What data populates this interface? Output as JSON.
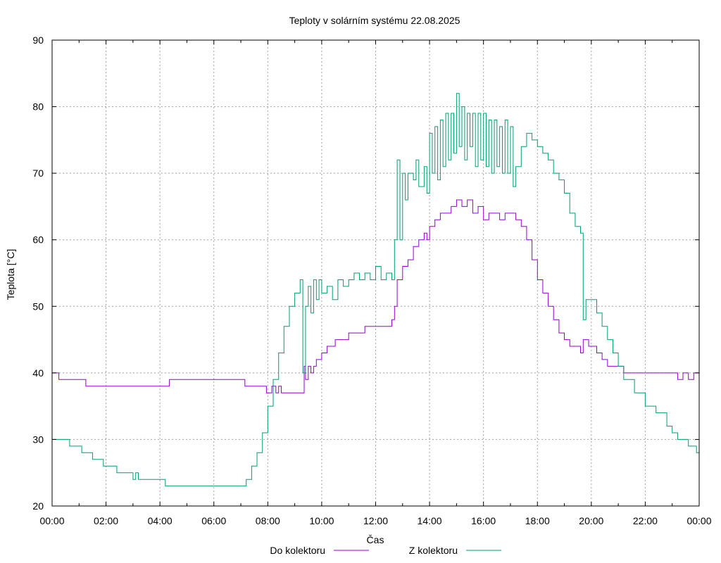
{
  "chart_data": {
    "type": "line",
    "title": "Teploty v solárním systému 22.08.2025",
    "xlabel": "Čas",
    "ylabel": "Teplota [°C]",
    "xlim": [
      0,
      24
    ],
    "ylim": [
      20,
      90
    ],
    "x_ticks": [
      "00:00",
      "02:00",
      "04:00",
      "06:00",
      "08:00",
      "10:00",
      "12:00",
      "14:00",
      "16:00",
      "18:00",
      "20:00",
      "22:00",
      "00:00"
    ],
    "y_ticks": [
      "20",
      "30",
      "40",
      "50",
      "60",
      "70",
      "80",
      "90"
    ],
    "grid": true,
    "legend_position": "bottom",
    "x_unit": "hours",
    "series": [
      {
        "name": "Do kolektoru",
        "color": "#9400d3",
        "points": [
          [
            0,
            40
          ],
          [
            0.2,
            40
          ],
          [
            0.25,
            39
          ],
          [
            1.2,
            39
          ],
          [
            1.25,
            38
          ],
          [
            4.3,
            38
          ],
          [
            4.35,
            39
          ],
          [
            7.1,
            39
          ],
          [
            7.15,
            38
          ],
          [
            7.9,
            38
          ],
          [
            7.95,
            37
          ],
          [
            8.1,
            37
          ],
          [
            8.15,
            38
          ],
          [
            8.3,
            37
          ],
          [
            8.4,
            38
          ],
          [
            8.5,
            37
          ],
          [
            9.3,
            37
          ],
          [
            9.35,
            41
          ],
          [
            9.4,
            39
          ],
          [
            9.5,
            41
          ],
          [
            9.6,
            40
          ],
          [
            9.7,
            41
          ],
          [
            9.8,
            42
          ],
          [
            10.0,
            43
          ],
          [
            10.2,
            44
          ],
          [
            10.5,
            45
          ],
          [
            10.8,
            45
          ],
          [
            11.0,
            46
          ],
          [
            11.5,
            46
          ],
          [
            11.6,
            47
          ],
          [
            12.0,
            47
          ],
          [
            12.5,
            47
          ],
          [
            12.6,
            48
          ],
          [
            12.7,
            50
          ],
          [
            12.8,
            54
          ],
          [
            13.0,
            56
          ],
          [
            13.2,
            57
          ],
          [
            13.4,
            59
          ],
          [
            13.6,
            60
          ],
          [
            13.8,
            61
          ],
          [
            13.9,
            60
          ],
          [
            14.0,
            62
          ],
          [
            14.2,
            63
          ],
          [
            14.4,
            64
          ],
          [
            14.6,
            64
          ],
          [
            14.8,
            65
          ],
          [
            15.0,
            66
          ],
          [
            15.2,
            65
          ],
          [
            15.4,
            66
          ],
          [
            15.6,
            64
          ],
          [
            15.8,
            65
          ],
          [
            16.0,
            63
          ],
          [
            16.2,
            64
          ],
          [
            16.4,
            64
          ],
          [
            16.6,
            63
          ],
          [
            16.8,
            64
          ],
          [
            17.0,
            64
          ],
          [
            17.2,
            63
          ],
          [
            17.4,
            62
          ],
          [
            17.6,
            60
          ],
          [
            17.8,
            57
          ],
          [
            18.0,
            54
          ],
          [
            18.2,
            52
          ],
          [
            18.4,
            50
          ],
          [
            18.6,
            48
          ],
          [
            18.8,
            46
          ],
          [
            19.0,
            45
          ],
          [
            19.2,
            44
          ],
          [
            19.4,
            44
          ],
          [
            19.6,
            43
          ],
          [
            19.7,
            45
          ],
          [
            19.9,
            44
          ],
          [
            20.0,
            44
          ],
          [
            20.2,
            43
          ],
          [
            20.4,
            42
          ],
          [
            20.6,
            41
          ],
          [
            20.8,
            41
          ],
          [
            21.0,
            41
          ],
          [
            21.2,
            40
          ],
          [
            21.6,
            40
          ],
          [
            22.0,
            40
          ],
          [
            22.5,
            40
          ],
          [
            23.0,
            40
          ],
          [
            23.2,
            39
          ],
          [
            23.4,
            40
          ],
          [
            23.6,
            39
          ],
          [
            23.8,
            40
          ],
          [
            24.0,
            39
          ]
        ]
      },
      {
        "name": "Z kolektoru",
        "color": "#009e73",
        "points": [
          [
            0,
            30
          ],
          [
            0.6,
            30
          ],
          [
            0.65,
            29
          ],
          [
            1.0,
            29
          ],
          [
            1.1,
            28
          ],
          [
            1.4,
            28
          ],
          [
            1.5,
            27
          ],
          [
            1.8,
            27
          ],
          [
            1.9,
            26
          ],
          [
            2.3,
            26
          ],
          [
            2.4,
            25
          ],
          [
            2.9,
            25
          ],
          [
            3.0,
            24
          ],
          [
            3.1,
            25
          ],
          [
            3.2,
            24
          ],
          [
            3.4,
            24
          ],
          [
            4.1,
            24
          ],
          [
            4.2,
            23
          ],
          [
            7.1,
            23
          ],
          [
            7.2,
            24
          ],
          [
            7.4,
            26
          ],
          [
            7.6,
            28
          ],
          [
            7.8,
            31
          ],
          [
            8.0,
            35
          ],
          [
            8.2,
            39
          ],
          [
            8.4,
            43
          ],
          [
            8.6,
            47
          ],
          [
            8.8,
            50
          ],
          [
            9.0,
            52
          ],
          [
            9.2,
            54
          ],
          [
            9.3,
            40
          ],
          [
            9.4,
            50
          ],
          [
            9.5,
            53
          ],
          [
            9.6,
            49
          ],
          [
            9.7,
            54
          ],
          [
            9.8,
            51
          ],
          [
            9.9,
            54
          ],
          [
            10.0,
            52
          ],
          [
            10.2,
            53
          ],
          [
            10.4,
            51
          ],
          [
            10.6,
            54
          ],
          [
            10.8,
            53
          ],
          [
            11.0,
            54
          ],
          [
            11.2,
            55
          ],
          [
            11.4,
            54
          ],
          [
            11.6,
            55
          ],
          [
            11.8,
            54
          ],
          [
            12.0,
            56
          ],
          [
            12.2,
            54
          ],
          [
            12.4,
            55
          ],
          [
            12.6,
            54
          ],
          [
            12.7,
            60
          ],
          [
            12.8,
            72
          ],
          [
            12.9,
            60
          ],
          [
            13.0,
            70
          ],
          [
            13.1,
            66
          ],
          [
            13.2,
            70
          ],
          [
            13.4,
            69
          ],
          [
            13.5,
            72
          ],
          [
            13.6,
            68
          ],
          [
            13.8,
            71
          ],
          [
            13.9,
            67
          ],
          [
            14.0,
            76
          ],
          [
            14.1,
            70
          ],
          [
            14.2,
            77
          ],
          [
            14.3,
            69
          ],
          [
            14.4,
            78
          ],
          [
            14.5,
            71
          ],
          [
            14.6,
            79
          ],
          [
            14.7,
            72
          ],
          [
            14.8,
            79
          ],
          [
            14.9,
            73
          ],
          [
            15.0,
            82
          ],
          [
            15.1,
            74
          ],
          [
            15.2,
            80
          ],
          [
            15.3,
            72
          ],
          [
            15.4,
            79
          ],
          [
            15.5,
            74
          ],
          [
            15.6,
            79
          ],
          [
            15.7,
            71
          ],
          [
            15.8,
            79
          ],
          [
            15.9,
            72
          ],
          [
            16.0,
            79
          ],
          [
            16.1,
            71
          ],
          [
            16.2,
            78
          ],
          [
            16.3,
            70
          ],
          [
            16.4,
            78
          ],
          [
            16.5,
            71
          ],
          [
            16.6,
            77
          ],
          [
            16.7,
            70
          ],
          [
            16.8,
            78
          ],
          [
            16.9,
            70
          ],
          [
            17.0,
            77
          ],
          [
            17.1,
            68
          ],
          [
            17.2,
            71
          ],
          [
            17.4,
            74
          ],
          [
            17.6,
            76
          ],
          [
            17.8,
            75
          ],
          [
            18.0,
            74
          ],
          [
            18.2,
            73
          ],
          [
            18.4,
            72
          ],
          [
            18.6,
            70
          ],
          [
            18.8,
            69
          ],
          [
            19.0,
            67
          ],
          [
            19.2,
            64
          ],
          [
            19.4,
            62
          ],
          [
            19.6,
            61
          ],
          [
            19.7,
            48
          ],
          [
            19.8,
            51
          ],
          [
            20.0,
            51
          ],
          [
            20.2,
            49
          ],
          [
            20.4,
            47
          ],
          [
            20.6,
            45
          ],
          [
            20.8,
            43
          ],
          [
            21.0,
            41
          ],
          [
            21.2,
            39
          ],
          [
            21.6,
            37
          ],
          [
            22.0,
            35
          ],
          [
            22.4,
            34
          ],
          [
            22.8,
            32
          ],
          [
            23.0,
            31
          ],
          [
            23.2,
            30
          ],
          [
            23.6,
            29
          ],
          [
            23.8,
            29
          ],
          [
            23.9,
            28
          ],
          [
            24.0,
            29
          ]
        ]
      }
    ]
  }
}
